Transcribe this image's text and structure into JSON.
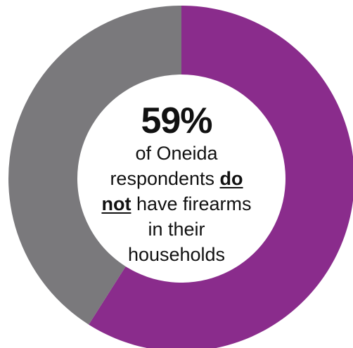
{
  "chart_data": {
    "type": "pie",
    "donut": true,
    "slices": [
      {
        "label": "do not have firearms",
        "value": 59,
        "color": "#8a2c8c"
      },
      {
        "label": "have firearms",
        "value": 41,
        "color": "#7a797c"
      }
    ],
    "start_angle_deg": 0,
    "direction": "clockwise"
  },
  "center": {
    "percent": "59%",
    "line1": "of Oneida",
    "line2_pre": "respondents ",
    "line2_emph": "do",
    "line3_emph": "not",
    "line3_post": " have firearms",
    "line4": "in their",
    "line5": "households"
  }
}
